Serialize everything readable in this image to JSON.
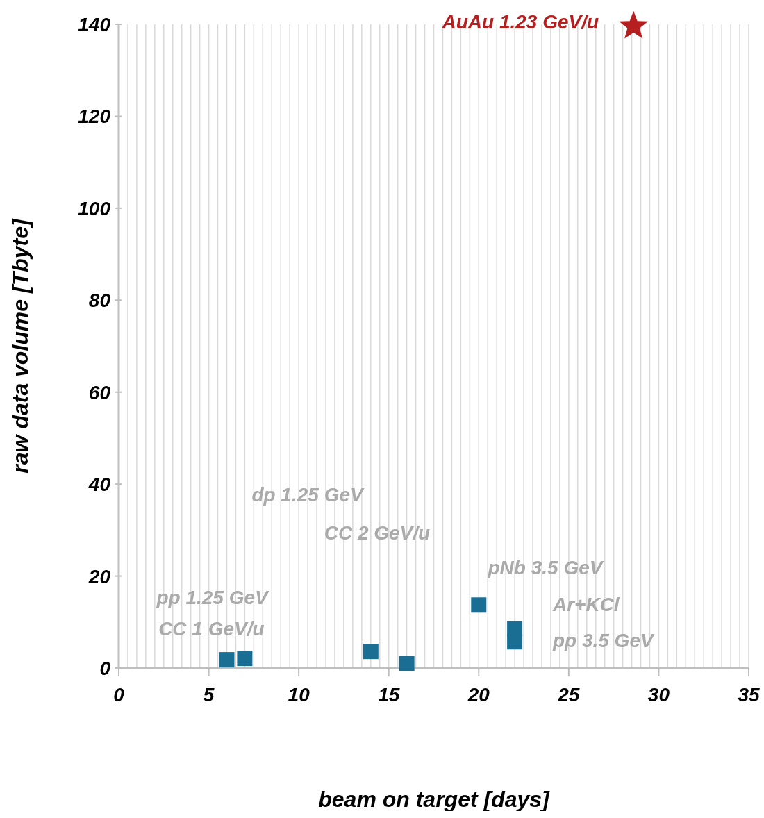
{
  "chart_data": {
    "type": "scatter",
    "xlabel": "beam on target [days]",
    "ylabel": "raw data volume [Tbyte]",
    "series": [
      {
        "marker": "square",
        "color": "#1a6e94",
        "x": [
          6,
          7,
          14,
          16,
          20,
          22,
          22
        ],
        "values": [
          1.8,
          2.1,
          3.6,
          1.0,
          13.7,
          8.5,
          5.7
        ]
      },
      {
        "marker": "star",
        "name": "AuAu 1.23 GeV/u",
        "color": "#b51f1f",
        "x": [
          28.6
        ],
        "values": [
          139.6
        ]
      }
    ],
    "annotations": [
      "dp 1.25 GeV",
      "CC 2 GeV/u",
      "pNb 3.5 GeV",
      "Ar+KCl",
      "pp 3.5 GeV",
      "pp 1.25 GeV",
      "CC 1 GeV/u"
    ],
    "xlim": [
      0,
      35
    ],
    "xticks": [
      0,
      {
        "value": 0.5,
        "label": null
      },
      {
        "value": 1,
        "label": null
      },
      {
        "value": 1.5,
        "label": null
      },
      {
        "value": 2,
        "label": null
      },
      {
        "value": 2.5,
        "label": null
      },
      {
        "value": 3,
        "label": null
      },
      {
        "value": 3.5,
        "label": null
      },
      {
        "value": 4,
        "label": null
      },
      {
        "value": 4.5,
        "label": null
      },
      5,
      {
        "value": 5.5,
        "label": null
      },
      {
        "value": 6,
        "label": null
      },
      {
        "value": 6.5,
        "label": null
      },
      {
        "value": 7,
        "label": null
      },
      {
        "value": 7.5,
        "label": null
      },
      {
        "value": 8,
        "label": null
      },
      {
        "value": 8.5,
        "label": null
      },
      {
        "value": 9,
        "label": null
      },
      {
        "value": 9.5,
        "label": null
      },
      10,
      {
        "value": 10.5,
        "label": null
      },
      {
        "value": 11,
        "label": null
      },
      {
        "value": 11.5,
        "label": null
      },
      {
        "value": 12,
        "label": null
      },
      {
        "value": 12.5,
        "label": null
      },
      {
        "value": 13,
        "label": null
      },
      {
        "value": 13.5,
        "label": null
      },
      {
        "value": 14,
        "label": null
      },
      {
        "value": 14.5,
        "label": null
      },
      15,
      {
        "value": 15.5,
        "label": null
      },
      {
        "value": 16,
        "label": null
      },
      {
        "value": 16.5,
        "label": null
      },
      {
        "value": 17,
        "label": null
      },
      {
        "value": 17.5,
        "label": null
      },
      {
        "value": 18,
        "label": null
      },
      {
        "value": 18.5,
        "label": null
      },
      {
        "value": 19,
        "label": null
      },
      {
        "value": 19.5,
        "label": null
      },
      20,
      {
        "value": 20.5,
        "label": null
      },
      {
        "value": 21,
        "label": null
      },
      {
        "value": 21.5,
        "label": null
      },
      {
        "value": 22,
        "label": null
      },
      {
        "value": 22.5,
        "label": null
      },
      {
        "value": 23,
        "label": null
      },
      {
        "value": 23.5,
        "label": null
      },
      {
        "value": 24,
        "label": null
      },
      {
        "value": 24.5,
        "label": null
      },
      25,
      {
        "value": 25.5,
        "label": null
      },
      {
        "value": 26,
        "label": null
      },
      {
        "value": 26.5,
        "label": null
      },
      {
        "value": 27,
        "label": null
      },
      {
        "value": 27.5,
        "label": null
      },
      {
        "value": 28,
        "label": null
      },
      {
        "value": 28.5,
        "label": null
      },
      {
        "value": 29,
        "label": null
      },
      {
        "value": 29.5,
        "label": null
      },
      30,
      {
        "value": 30.5,
        "label": null
      },
      {
        "value": 31,
        "label": null
      },
      {
        "value": 31.5,
        "label": null
      },
      {
        "value": 32,
        "label": null
      },
      {
        "value": 32.5,
        "label": null
      },
      {
        "value": 33,
        "label": null
      },
      {
        "value": 33.5,
        "label": null
      },
      {
        "value": 34,
        "label": null
      },
      {
        "value": 34.5,
        "label": null
      },
      35
    ],
    "ylim": [
      0,
      140
    ],
    "yticks": [
      0,
      20,
      40,
      60,
      80,
      100,
      120,
      140
    ],
    "grid": "x",
    "legend": false
  }
}
